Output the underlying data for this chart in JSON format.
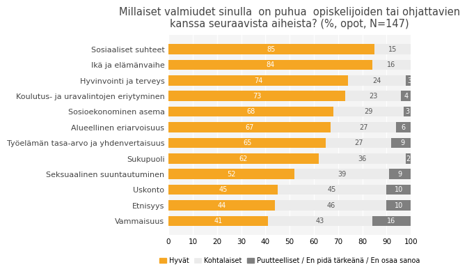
{
  "title": "Millaiset valmiudet sinulla  on puhua  opiskelijoiden tai ohjattavien\nkanssa seuraavista aiheista? (%, opot, N=147)",
  "categories": [
    "Sosiaaliset suhteet",
    "Ikä ja elämänvaihe",
    "Hyvinvointi ja terveys",
    "Koulutus- ja uravalintojen eriytyminen",
    "Sosioekonominen asema",
    "Alueellinen eriarvoisuus",
    "Työelämän tasa-arvo ja yhdenvertaisuus",
    "Sukupuoli",
    "Seksuaalinen suuntautuminen",
    "Uskonto",
    "Etnisyys",
    "Vammaisuus"
  ],
  "hyvat": [
    85,
    84,
    74,
    73,
    68,
    67,
    65,
    62,
    52,
    45,
    44,
    41
  ],
  "kohtalaiset": [
    15,
    16,
    24,
    23,
    29,
    27,
    27,
    36,
    39,
    45,
    46,
    43
  ],
  "puutteelliset": [
    0,
    0,
    3,
    4,
    3,
    6,
    9,
    2,
    9,
    10,
    10,
    16
  ],
  "color_hyvat": "#F5A623",
  "color_kohtalaiset": "#EBEBEB",
  "color_puutteelliset": "#7F7F7F",
  "legend_labels": [
    "Hyvät",
    "Kohtalaiset",
    "Puutteelliset / En pidä tärkeänä / En osaa sanoa"
  ],
  "xlim": [
    0,
    100
  ],
  "xticks": [
    0,
    10,
    20,
    30,
    40,
    50,
    60,
    70,
    80,
    90,
    100
  ],
  "title_fontsize": 10.5,
  "label_fontsize": 8,
  "bar_height": 0.65,
  "value_fontsize": 7,
  "hyvat_label_color": "white",
  "kohtalaiset_label_color": "#555555",
  "puutteelliset_label_color": "white",
  "bg_color": "#F5F5F5"
}
